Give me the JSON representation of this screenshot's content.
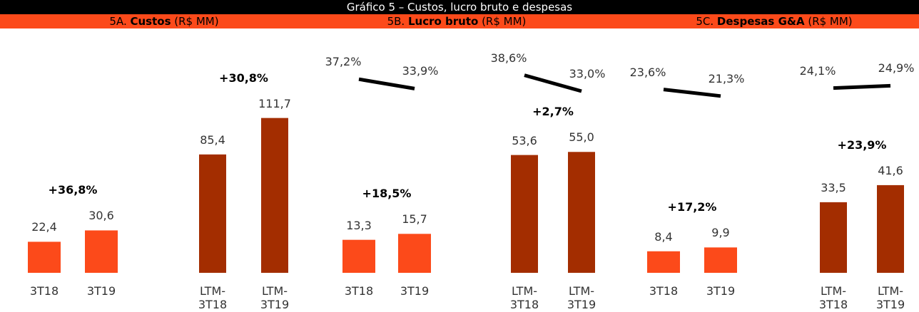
{
  "header": {
    "title": "Gráfico 5 – Custos, lucro bruto e despesas"
  },
  "chart_data": [
    {
      "type": "bar",
      "title_parts": [
        "5A. ",
        "Custos",
        " (R$ MM)"
      ],
      "groups": [
        {
          "categories": [
            "3T18",
            "3T19"
          ],
          "values": [
            22.4,
            30.6
          ],
          "value_labels": [
            "22,4",
            "30,6"
          ],
          "color": "#fc4a1a",
          "ylim": [
            0,
            111
          ],
          "annotation": "+36,8%"
        },
        {
          "categories": [
            "LTM-3T18",
            "LTM-3T19"
          ],
          "values": [
            85.4,
            111.7
          ],
          "value_labels": [
            "85,4",
            "111,7"
          ],
          "color": "#a32d00",
          "ylim": [
            0,
            111
          ],
          "annotation": "+30,8%"
        }
      ]
    },
    {
      "type": "bar",
      "title_parts": [
        "5B. ",
        "Lucro bruto",
        " (R$ MM)"
      ],
      "margin_ylim": [
        15,
        45
      ],
      "groups": [
        {
          "categories": [
            "3T18",
            "3T19"
          ],
          "values": [
            13.3,
            15.7
          ],
          "value_labels": [
            "13,3",
            "15,7"
          ],
          "color": "#fc4a1a",
          "ylim": [
            0,
            62
          ],
          "annotation": "+18,5%",
          "margin": {
            "values": [
              37.2,
              33.9
            ],
            "value_labels": [
              "37,2%",
              "33,9%"
            ]
          }
        },
        {
          "categories": [
            "LTM-3T18",
            "LTM-3T19"
          ],
          "values": [
            53.6,
            55.0
          ],
          "value_labels": [
            "53,6",
            "55,0"
          ],
          "color": "#a32d00",
          "ylim": [
            0,
            70
          ],
          "annotation": "+2,7%",
          "margin": {
            "values": [
              38.6,
              33.0
            ],
            "value_labels": [
              "38,6%",
              "33,0%"
            ]
          }
        }
      ]
    },
    {
      "type": "bar",
      "title_parts": [
        "5C. ",
        "Despesas G&A",
        " (R$ MM)"
      ],
      "margin_ylim": [
        5,
        35
      ],
      "groups": [
        {
          "categories": [
            "3T18",
            "3T19"
          ],
          "values": [
            8.4,
            9.9
          ],
          "value_labels": [
            "8,4",
            "9,9"
          ],
          "color": "#fc4a1a",
          "ylim": [
            0,
            60
          ],
          "annotation": "+17,2%",
          "margin": {
            "values": [
              23.6,
              21.3
            ],
            "value_labels": [
              "23,6%",
              "21,3%"
            ]
          }
        },
        {
          "categories": [
            "LTM-3T18",
            "LTM-3T19"
          ],
          "values": [
            33.5,
            41.6
          ],
          "value_labels": [
            "33,5",
            "41,6"
          ],
          "color": "#a32d00",
          "ylim": [
            0,
            73
          ],
          "annotation": "+23,9%",
          "margin": {
            "values": [
              24.1,
              24.9
            ],
            "value_labels": [
              "24,1%",
              "24,9%"
            ]
          }
        }
      ]
    }
  ]
}
